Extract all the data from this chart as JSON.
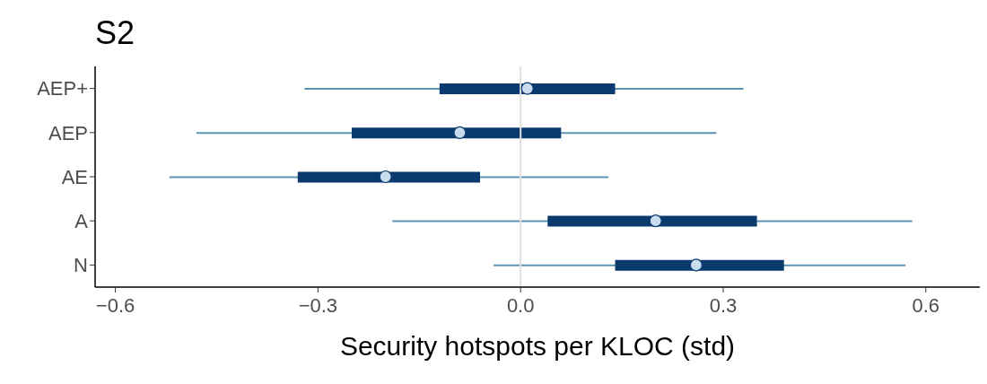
{
  "chart_data": {
    "type": "box",
    "orientation": "horizontal",
    "title": "S2",
    "xlabel": "Security hotspots per KLOC (std)",
    "categories": [
      "AEP+",
      "AEP",
      "AE",
      "A",
      "N"
    ],
    "series": [
      {
        "color": "#0b3b6e",
        "boxes": [
          {
            "low": -0.32,
            "q1": -0.12,
            "median": 0.01,
            "q3": 0.14,
            "high": 0.33
          },
          {
            "low": -0.48,
            "q1": -0.25,
            "median": -0.09,
            "q3": 0.06,
            "high": 0.29
          },
          {
            "low": -0.52,
            "q1": -0.33,
            "median": -0.2,
            "q3": -0.06,
            "high": 0.13
          },
          {
            "low": -0.19,
            "q1": 0.04,
            "median": 0.2,
            "q3": 0.35,
            "high": 0.58
          },
          {
            "low": -0.04,
            "q1": 0.14,
            "median": 0.26,
            "q3": 0.39,
            "high": 0.57
          }
        ]
      }
    ],
    "xlim": [
      -0.63,
      0.68
    ],
    "xticks": [
      {
        "value": -0.6,
        "label": "−0.6"
      },
      {
        "value": -0.3,
        "label": "−0.3"
      },
      {
        "value": 0,
        "label": "0.0"
      },
      0.3,
      0.6
    ],
    "ref_lines": [
      {
        "axis": "x",
        "value": 0,
        "color": "#e0e0e0"
      }
    ],
    "grid": false,
    "legend": false
  }
}
